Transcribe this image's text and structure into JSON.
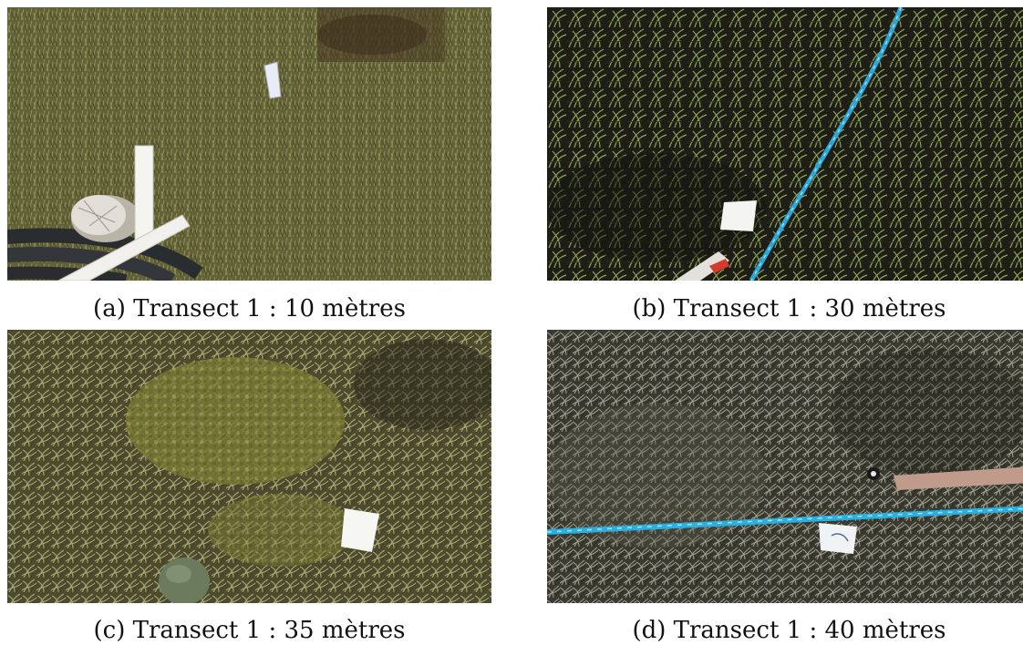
{
  "figure": {
    "panels": [
      {
        "caption": "(a) Transect 1 : 10 mètres",
        "palette": {
          "base": "#6b6a3c",
          "grass_light": "#9aa066",
          "grass_dark": "#4a4a28",
          "accent": "#c8c8c0"
        }
      },
      {
        "caption": "(b) Transect 1 : 30 mètres",
        "palette": {
          "base": "#1e1e16",
          "grass_light": "#8fa45a",
          "grass_dark": "#2e3420",
          "rope": "#2aa6d8"
        }
      },
      {
        "caption": "(c) Transect 1 : 35 mètres",
        "palette": {
          "base": "#4e4a30",
          "grass_light": "#a8ac72",
          "grass_dark": "#3c3a22",
          "moss": "#8a8a3e"
        }
      },
      {
        "caption": "(d) Transect 1 : 40 mètres",
        "palette": {
          "base": "#3a3a30",
          "grass_light": "#a0a090",
          "grass_dark": "#2a2a22",
          "rope": "#2ab0e0"
        }
      }
    ]
  }
}
